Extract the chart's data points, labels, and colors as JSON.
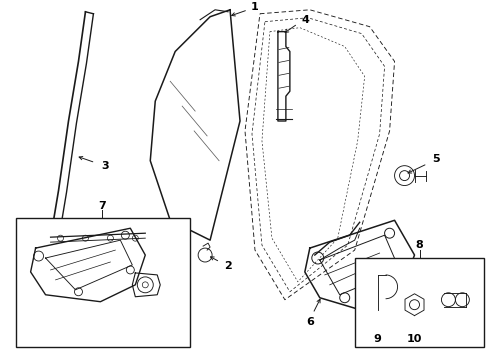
{
  "bg_color": "#ffffff",
  "line_color": "#1a1a1a",
  "fig_width": 4.89,
  "fig_height": 3.6,
  "dpi": 100,
  "label_fontsize": 8.0,
  "lw_main": 1.1,
  "lw_thin": 0.65,
  "lw_dash": 0.65
}
